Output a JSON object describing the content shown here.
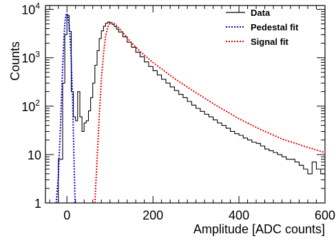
{
  "chart_data": {
    "type": "line",
    "xlabel": "Amplitude [ADC counts]",
    "ylabel": "Counts",
    "xlim": [
      -50,
      600
    ],
    "ylim": [
      1,
      12000
    ],
    "y_scale": "log",
    "x_ticks": [
      {
        "value": 0,
        "label": "0"
      },
      {
        "value": 200,
        "label": "200"
      },
      {
        "value": 400,
        "label": "400"
      },
      {
        "value": 600,
        "label": "600"
      }
    ],
    "y_ticks": [
      {
        "value": 1,
        "label": "1",
        "sup": ""
      },
      {
        "value": 10,
        "label": "10",
        "sup": ""
      },
      {
        "value": 100,
        "label": "10",
        "sup": "2"
      },
      {
        "value": 1000,
        "label": "10",
        "sup": "3"
      },
      {
        "value": 10000,
        "label": "10",
        "sup": "4"
      }
    ],
    "legend": {
      "placement": "top-right",
      "entries": [
        {
          "label": "Data",
          "color": "#000000",
          "style": "solid"
        },
        {
          "label": "Pedestal fit",
          "color": "#0000ee",
          "style": "dotted"
        },
        {
          "label": "Signal fit",
          "color": "#ee0000",
          "style": "dotted"
        }
      ]
    },
    "series": [
      {
        "name": "Data",
        "color": "#000000",
        "style": "step",
        "x": [
          -30,
          -20,
          -10,
          -5,
          0,
          5,
          10,
          15,
          20,
          25,
          30,
          35,
          40,
          45,
          50,
          55,
          60,
          65,
          70,
          75,
          80,
          85,
          90,
          95,
          100,
          105,
          110,
          115,
          120,
          130,
          140,
          150,
          160,
          170,
          180,
          190,
          200,
          210,
          220,
          230,
          240,
          250,
          260,
          270,
          280,
          290,
          300,
          310,
          320,
          330,
          340,
          350,
          360,
          370,
          380,
          390,
          400,
          410,
          420,
          430,
          440,
          450,
          460,
          470,
          480,
          490,
          500,
          510,
          520,
          530,
          540,
          550,
          560,
          570,
          580,
          590,
          600
        ],
        "y": [
          1,
          8,
          300,
          3000,
          7500,
          3500,
          200,
          60,
          50,
          200,
          60,
          30,
          45,
          50,
          80,
          150,
          300,
          700,
          1400,
          2500,
          3600,
          4500,
          5200,
          5500,
          5300,
          4900,
          4400,
          3900,
          3400,
          2700,
          2100,
          1650,
          1300,
          1050,
          820,
          660,
          540,
          440,
          360,
          300,
          250,
          210,
          175,
          150,
          125,
          105,
          90,
          78,
          68,
          60,
          52,
          45,
          40,
          35,
          30,
          27,
          25,
          22,
          20,
          18,
          17,
          15,
          13,
          12,
          11,
          10,
          9,
          8,
          8,
          7,
          6,
          5,
          4,
          7,
          5,
          4,
          4
        ]
      },
      {
        "name": "Pedestal fit",
        "color": "#0000ee",
        "style": "dotted",
        "x": [
          -25,
          -20,
          -15,
          -10,
          -7,
          -5,
          -3,
          -1,
          0,
          1,
          3,
          5,
          7,
          10,
          13,
          15,
          17,
          19
        ],
        "y": [
          1,
          3.5,
          40,
          650,
          2500,
          5000,
          7300,
          8200,
          8100,
          7700,
          6500,
          4800,
          2800,
          900,
          150,
          28,
          5,
          1
        ]
      },
      {
        "name": "Signal fit",
        "color": "#ee0000",
        "style": "dotted",
        "x": [
          65,
          70,
          75,
          80,
          85,
          90,
          95,
          100,
          105,
          110,
          120,
          130,
          140,
          150,
          170,
          200,
          250,
          300,
          350,
          400,
          450,
          500,
          550,
          600
        ],
        "y": [
          1,
          8,
          60,
          350,
          1200,
          2800,
          4300,
          5200,
          5300,
          5100,
          4200,
          3300,
          2600,
          2050,
          1350,
          800,
          370,
          190,
          100,
          55,
          33,
          21,
          15,
          11
        ]
      }
    ]
  }
}
